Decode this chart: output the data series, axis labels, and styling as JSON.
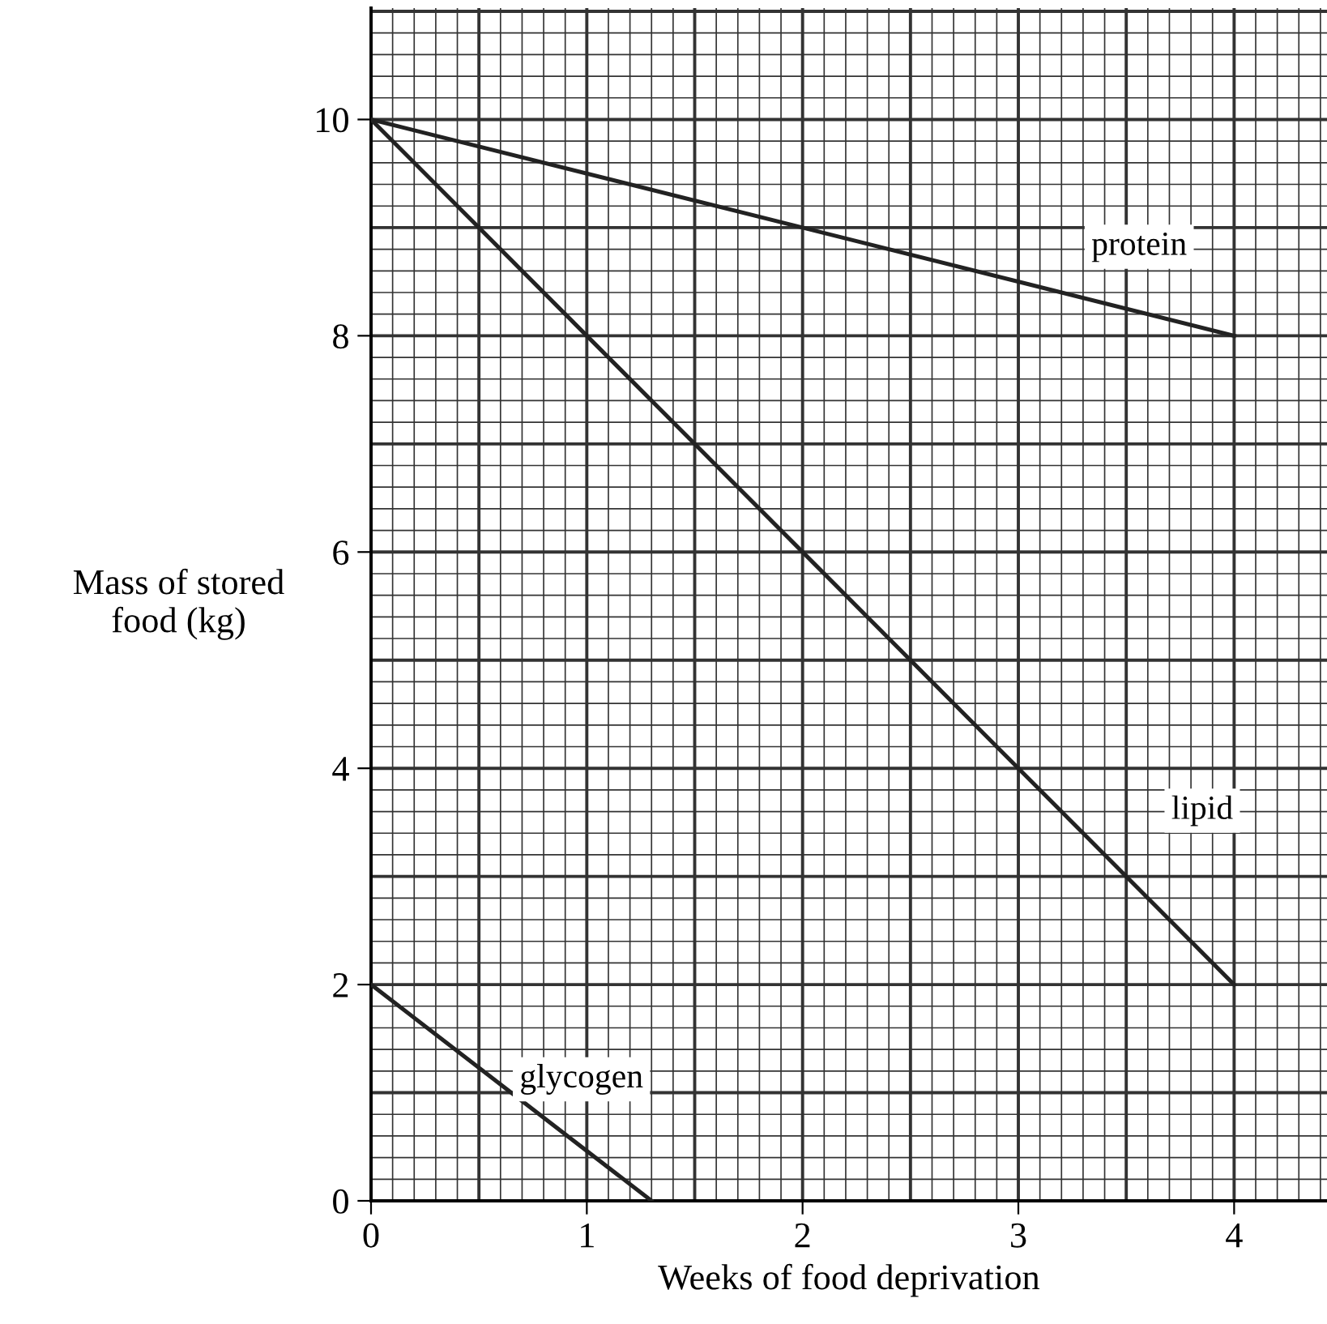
{
  "chart_data": {
    "type": "line",
    "xlabel": "Weeks of food deprivation",
    "ylabel": "Mass of stored\nfood (kg)",
    "series": [
      {
        "name": "protein",
        "color": "#222222",
        "x": [
          0,
          4
        ],
        "values": [
          10,
          8
        ]
      },
      {
        "name": "lipid",
        "color": "#222222",
        "x": [
          0,
          4
        ],
        "values": [
          10,
          2
        ]
      },
      {
        "name": "glycogen",
        "color": "#222222",
        "x": [
          0,
          1.3
        ],
        "values": [
          2,
          0
        ]
      }
    ],
    "xlim": [
      0,
      4.43
    ],
    "ylim": [
      0,
      11.03
    ],
    "xticks": [
      0,
      1,
      2,
      3,
      4
    ],
    "yticks": [
      0,
      2,
      4,
      6,
      8,
      10
    ],
    "grid": true,
    "marker": "none",
    "line_style": "solid"
  }
}
